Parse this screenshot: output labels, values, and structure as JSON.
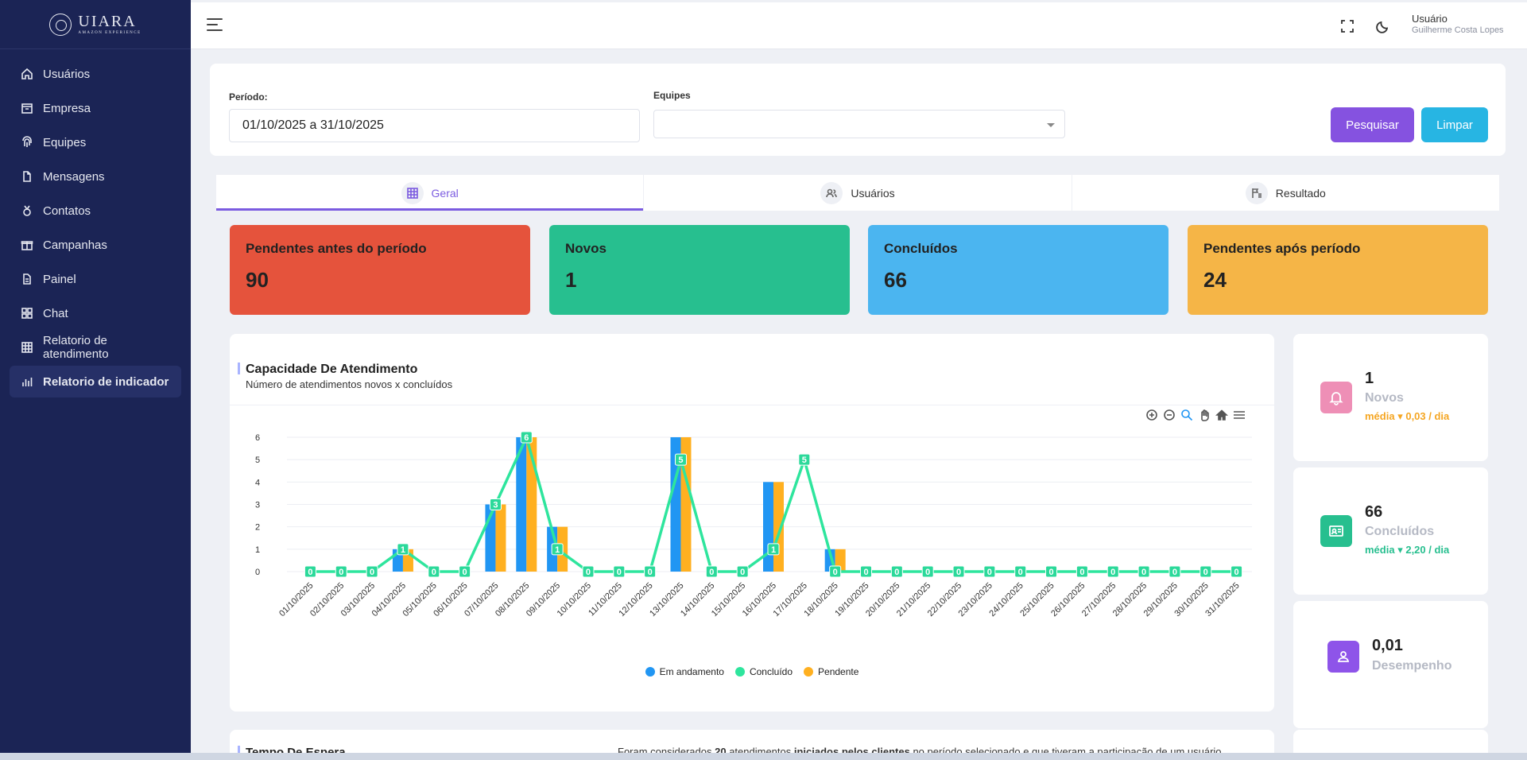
{
  "brand": {
    "name": "UIARA",
    "tagline": "AMAZON EXPERIENCE"
  },
  "sidebar": {
    "items": [
      {
        "label": "Usuários",
        "icon": "home-icon"
      },
      {
        "label": "Empresa",
        "icon": "building-icon"
      },
      {
        "label": "Equipes",
        "icon": "fingerprint-icon"
      },
      {
        "label": "Mensagens",
        "icon": "document-icon"
      },
      {
        "label": "Contatos",
        "icon": "medal-icon"
      },
      {
        "label": "Campanhas",
        "icon": "gift-icon"
      },
      {
        "label": "Painel",
        "icon": "file-icon"
      },
      {
        "label": "Chat",
        "icon": "grid-icon"
      },
      {
        "label": "Relatorio de atendimento",
        "icon": "table-icon"
      },
      {
        "label": "Relatorio de indicador",
        "icon": "bar-chart-icon",
        "active": true
      }
    ]
  },
  "header": {
    "user_role": "Usuário",
    "user_name": "Guilherme Costa Lopes"
  },
  "filters": {
    "period_label": "Período:",
    "period_value": "01/10/2025 a 31/10/2025",
    "teams_label": "Equipes",
    "teams_value": "",
    "search_button": "Pesquisar",
    "clear_button": "Limpar"
  },
  "tabs": [
    {
      "label": "Geral",
      "active": true
    },
    {
      "label": "Usuários",
      "active": false
    },
    {
      "label": "Resultado",
      "active": false
    }
  ],
  "stats": [
    {
      "title": "Pendentes antes do período",
      "value": "90",
      "color": "#e5533c"
    },
    {
      "title": "Novos",
      "value": "1",
      "color": "#27bf8f"
    },
    {
      "title": "Concluídos",
      "value": "66",
      "color": "#4bb5f0"
    },
    {
      "title": "Pendentes após período",
      "value": "24",
      "color": "#f5b547"
    }
  ],
  "chart_card": {
    "title": "Capacidade De Atendimento",
    "subtitle": "Número de atendimentos novos x concluídos"
  },
  "chart_data": {
    "type": "bar",
    "categories": [
      "01/10/2025",
      "02/10/2025",
      "03/10/2025",
      "04/10/2025",
      "05/10/2025",
      "06/10/2025",
      "07/10/2025",
      "08/10/2025",
      "09/10/2025",
      "10/10/2025",
      "11/10/2025",
      "12/10/2025",
      "13/10/2025",
      "14/10/2025",
      "15/10/2025",
      "16/10/2025",
      "17/10/2025",
      "18/10/2025",
      "19/10/2025",
      "20/10/2025",
      "21/10/2025",
      "22/10/2025",
      "23/10/2025",
      "24/10/2025",
      "25/10/2025",
      "26/10/2025",
      "27/10/2025",
      "28/10/2025",
      "29/10/2025",
      "30/10/2025",
      "31/10/2025"
    ],
    "series": [
      {
        "name": "Em andamento",
        "kind": "bar",
        "color": "#2196f3",
        "values": [
          0,
          0,
          0,
          1,
          0,
          0,
          3,
          6,
          2,
          0,
          0,
          0,
          6,
          0,
          0,
          4,
          0,
          1,
          0,
          0,
          0,
          0,
          0,
          0,
          0,
          0,
          0,
          0,
          0,
          0,
          0
        ]
      },
      {
        "name": "Concluído",
        "kind": "line",
        "color": "#2ee59d",
        "values": [
          0,
          0,
          0,
          1,
          0,
          0,
          3,
          6,
          1,
          0,
          0,
          0,
          5,
          0,
          0,
          1,
          5,
          0,
          0,
          0,
          0,
          0,
          0,
          0,
          0,
          0,
          0,
          0,
          0,
          0,
          0
        ]
      },
      {
        "name": "Pendente",
        "kind": "bar",
        "color": "#ffb020",
        "values": [
          0,
          0,
          0,
          1,
          0,
          0,
          3,
          6,
          2,
          0,
          0,
          0,
          6,
          0,
          0,
          4,
          0,
          1,
          0,
          0,
          0,
          0,
          0,
          0,
          0,
          0,
          0,
          0,
          0,
          0,
          0
        ]
      }
    ],
    "y_ticks": [
      "0",
      "1",
      "2",
      "3",
      "4",
      "5",
      "6"
    ],
    "ylim": [
      0,
      6
    ],
    "grid": true,
    "legend_position": "bottom"
  },
  "metrics": [
    {
      "value": "1",
      "label": "Novos",
      "avg_label": "média",
      "avg_value": "0,03 / dia",
      "badge_color": "#ee8fb6",
      "avg_color": "#f5a623",
      "icon": "bell-icon"
    },
    {
      "value": "66",
      "label": "Concluídos",
      "avg_label": "média",
      "avg_value": "2,20 / dia",
      "badge_color": "#27bf8f",
      "avg_color": "#27bf8f",
      "icon": "id-card-icon"
    },
    {
      "value": "0,01",
      "label": "Desempenho",
      "badge_color": "#8e54e9",
      "icon": "user-icon"
    }
  ],
  "wait_card": {
    "title": "Tempo De Espera",
    "note_pre": "Foram considerados ",
    "note_count": "20",
    "note_mid": " atendimentos ",
    "note_bold": "iniciados pelos clientes",
    "note_post": " no período selecionado e que tiveram a participação de um usuário."
  }
}
